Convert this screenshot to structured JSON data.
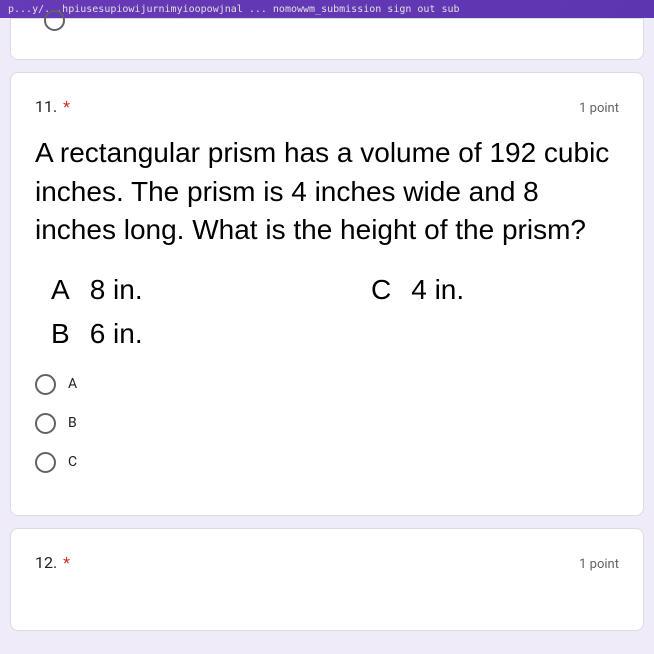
{
  "url_bar": "p...y/...hpiusesupiowijurnimyioopowjnal ... nomowwm_submission   sign out  sub",
  "question11": {
    "number": "11.",
    "points": "1 point",
    "text": "A rectangular prism has a volume of 192 cubic inches. The prism is 4 inches wide and 8 inches long. What is the height of the prism?",
    "answers": {
      "a": {
        "letter": "A",
        "text": "8 in."
      },
      "b": {
        "letter": "B",
        "text": "6 in."
      },
      "c": {
        "letter": "C",
        "text": "4 in."
      }
    },
    "options": {
      "a": "A",
      "b": "B",
      "c": "C"
    }
  },
  "question12": {
    "number": "12.",
    "points": "1 point"
  },
  "colors": {
    "background": "#f0ebf8",
    "card": "#ffffff",
    "border": "#dadce0",
    "required": "#d93025",
    "text_secondary": "#5f6368",
    "text_primary": "#202124"
  }
}
